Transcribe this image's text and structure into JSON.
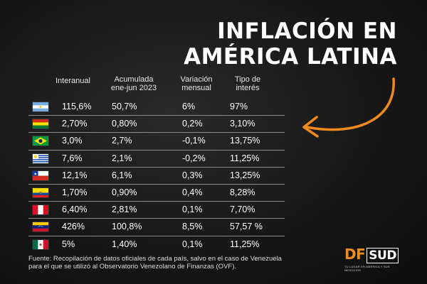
{
  "title": {
    "line1": "INFLACIÓN EN",
    "line2": "AMÉRICA LATINA"
  },
  "headers": {
    "interanual": "Interanual",
    "acumulada_l1": "Acumulada",
    "acumulada_l2": "ene-jun 2023",
    "variacion_l1": "Variación",
    "variacion_l2": "mensual",
    "tipo_l1": "Tipo de",
    "tipo_l2": "interés"
  },
  "rows": [
    {
      "flag": "argentina-flag-icon",
      "interanual": "115,6%",
      "acumulada": "50,7%",
      "variacion": "6%",
      "tipo": "97%"
    },
    {
      "flag": "bolivia-flag-icon",
      "interanual": "2,70%",
      "acumulada": "0,80%",
      "variacion": "0,2%",
      "tipo": "3,10%"
    },
    {
      "flag": "brazil-flag-icon",
      "interanual": "3,0%",
      "acumulada": "2,7%",
      "variacion": "-0,1%",
      "tipo": "13,75%"
    },
    {
      "flag": "uruguay-flag-icon",
      "interanual": "7,6%",
      "acumulada": "2,1%",
      "variacion": "-0,2%",
      "tipo": "11,25%"
    },
    {
      "flag": "chile-flag-icon",
      "interanual": "12,1%",
      "acumulada": "6,1%",
      "variacion": "0,3%",
      "tipo": "13,25%"
    },
    {
      "flag": "ecuador-flag-icon",
      "interanual": "1,70%",
      "acumulada": "0,90%",
      "variacion": "0,4%",
      "tipo": "8,28%"
    },
    {
      "flag": "peru-flag-icon",
      "interanual": "6,40%",
      "acumulada": "2,81%",
      "variacion": "0,1%",
      "tipo": "7,70%"
    },
    {
      "flag": "venezuela-flag-icon",
      "interanual": "426%",
      "acumulada": "100,8%",
      "variacion": "8,5%",
      "tipo": "57,57 %"
    },
    {
      "flag": "mexico-flag-icon",
      "interanual": "5%",
      "acumulada": "1,40%",
      "variacion": "0,1%",
      "tipo": "11,25%"
    }
  ],
  "source": {
    "line1": "Fuente:  Recopilación de datos oficiales de cada país, salvo en el caso de Venezuela",
    "line2": "para el que se utilizó al Observatorio Venezolano de Finanzas (OVF)."
  },
  "logo": {
    "df": "DF",
    "sud": "SUD",
    "tagline": "TU LUGAR EN AMÉRICA Y SUS NEGOCIOS"
  },
  "colors": {
    "background": "#161616",
    "accent_orange": "#f08a1c",
    "text": "#ffffff",
    "divider": "#8a8a8a"
  }
}
